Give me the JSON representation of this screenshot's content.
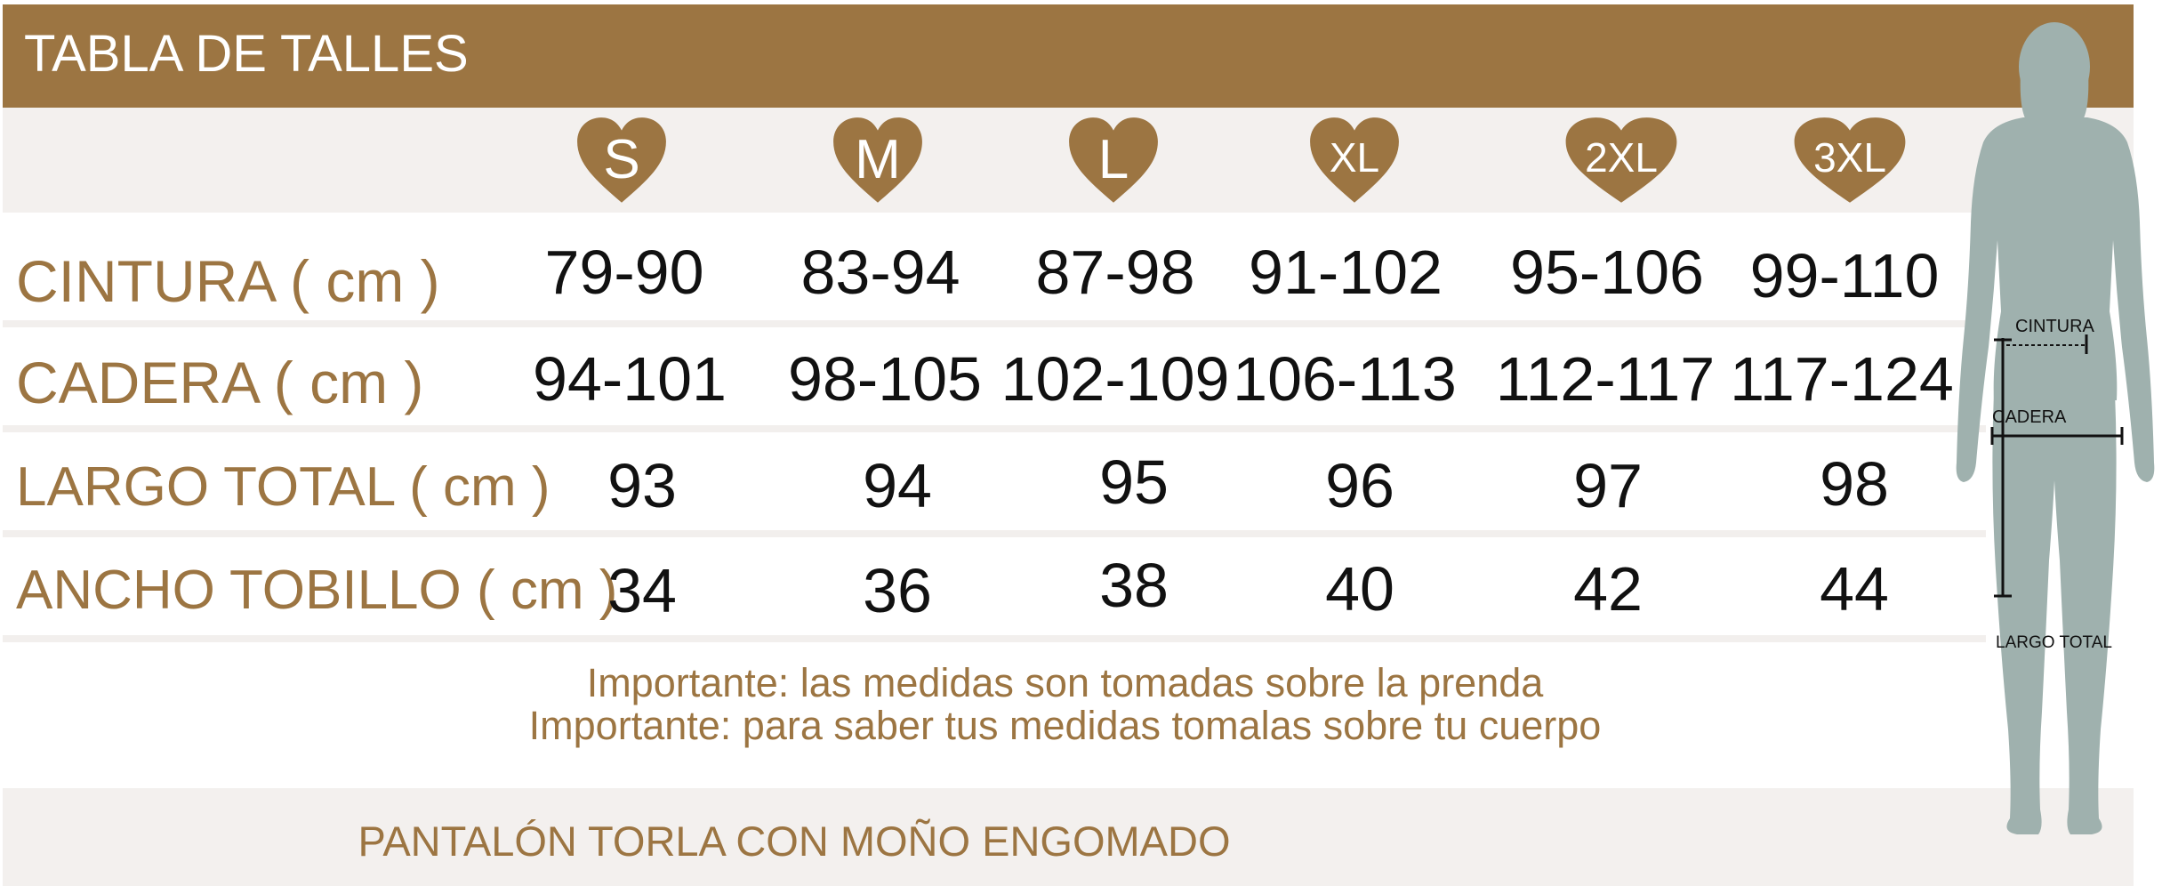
{
  "title": "TABLA DE TALLES",
  "sizes": [
    "S",
    "M",
    "L",
    "XL",
    "2XL",
    "3XL"
  ],
  "rows": [
    {
      "label": "CINTURA ( cm )",
      "values": [
        "79-90",
        "83-94",
        "87-98",
        "91-102",
        "95-106",
        "99-110"
      ]
    },
    {
      "label": "CADERA ( cm )",
      "values": [
        "94-101",
        "98-105",
        "102-109",
        "106-113",
        "112-117",
        "117-124"
      ]
    },
    {
      "label": "LARGO TOTAL ( cm )",
      "values": [
        "93",
        "94",
        "95",
        "96",
        "97",
        "98"
      ]
    },
    {
      "label": "ANCHO TOBILLO ( cm )",
      "values": [
        "34",
        "36",
        "38",
        "40",
        "42",
        "44"
      ]
    }
  ],
  "notes": [
    "Importante: las medidas son tomadas sobre la prenda",
    "Importante: para saber tus medidas tomalas sobre tu cuerpo"
  ],
  "footer": "PANTALÓN TORLA CON MOÑO ENGOMADO",
  "figure_labels": {
    "waist": "CINTURA",
    "hip": "CADERA",
    "length": "LARGO TOTAL"
  },
  "colors": {
    "brand": "#9c7542",
    "band": "#f3f0ee",
    "figure": "#9fb1ae"
  }
}
